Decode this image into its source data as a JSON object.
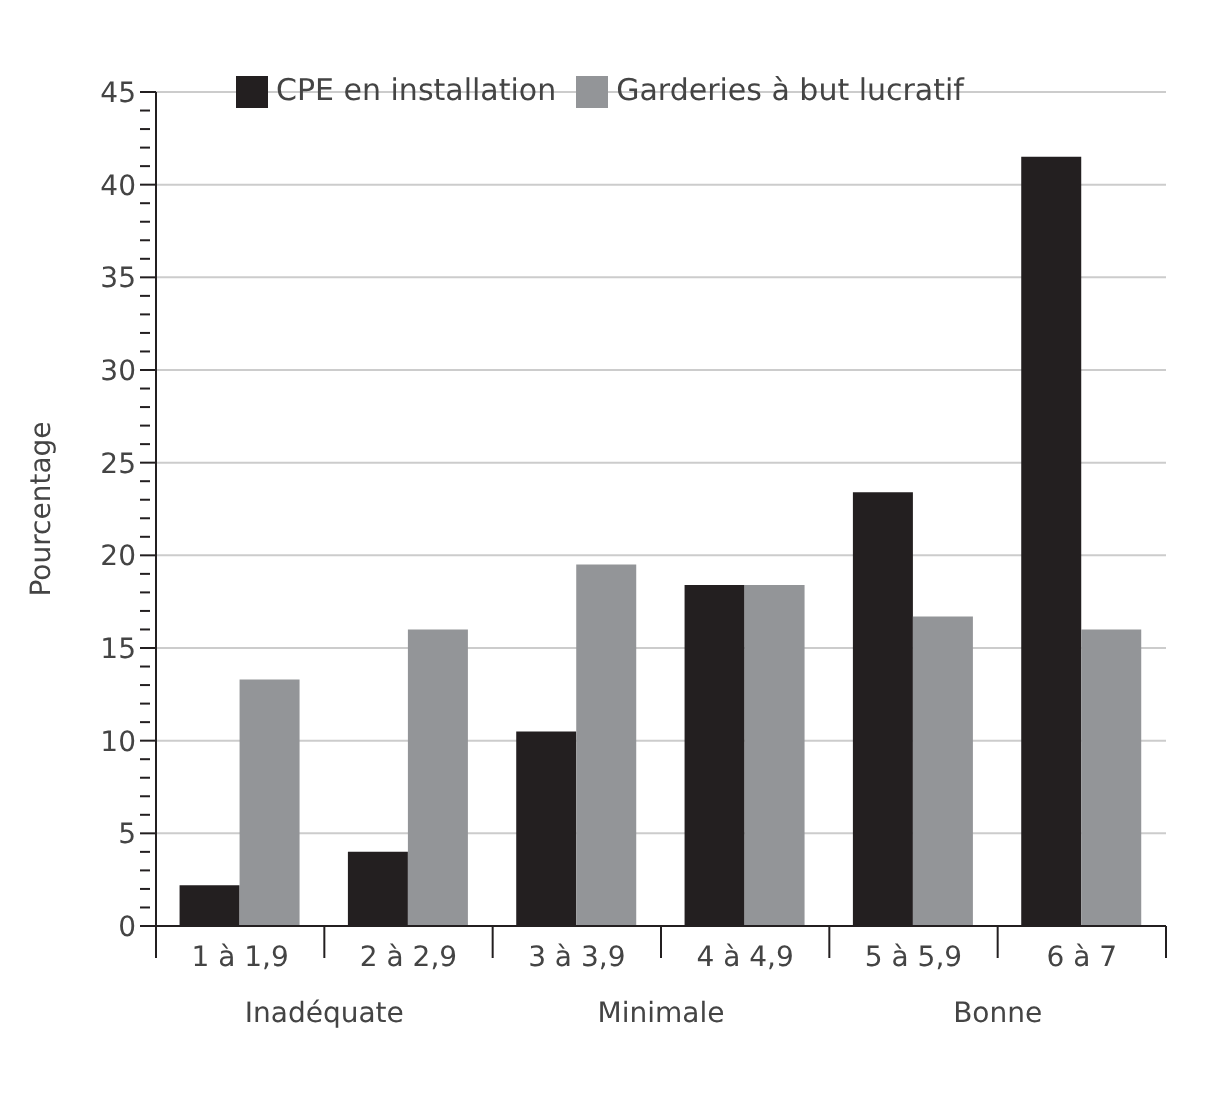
{
  "chart_data": {
    "type": "bar",
    "ylabel": "Pourcentage",
    "categories": [
      "1 à 1,9",
      "2 à 2,9",
      "3 à 3,9",
      "4 à 4,9",
      "5 à 5,9",
      "6 à 7"
    ],
    "series": [
      {
        "name": "CPE en installation",
        "color": "#231f20",
        "values": [
          2.2,
          4.0,
          10.5,
          18.4,
          23.4,
          41.5
        ]
      },
      {
        "name": "Garderies à but lucratif",
        "color": "#939598",
        "values": [
          13.3,
          16.0,
          19.5,
          18.4,
          16.7,
          16.0
        ]
      }
    ],
    "ylim": [
      0,
      45
    ],
    "yticks": [
      0,
      {
        "value": 1,
        "label": null
      },
      {
        "value": 2,
        "label": null
      },
      {
        "value": 3,
        "label": null
      },
      {
        "value": 4,
        "label": null
      },
      5,
      {
        "value": 6,
        "label": null
      },
      {
        "value": 7,
        "label": null
      },
      {
        "value": 8,
        "label": null
      },
      {
        "value": 9,
        "label": null
      },
      10,
      {
        "value": 11,
        "label": null
      },
      {
        "value": 12,
        "label": null
      },
      {
        "value": 13,
        "label": null
      },
      {
        "value": 14,
        "label": null
      },
      15,
      {
        "value": 16,
        "label": null
      },
      {
        "value": 17,
        "label": null
      },
      {
        "value": 18,
        "label": null
      },
      {
        "value": 19,
        "label": null
      },
      20,
      {
        "value": 21,
        "label": null
      },
      {
        "value": 22,
        "label": null
      },
      {
        "value": 23,
        "label": null
      },
      {
        "value": 24,
        "label": null
      },
      25,
      {
        "value": 26,
        "label": null
      },
      {
        "value": 27,
        "label": null
      },
      {
        "value": 28,
        "label": null
      },
      {
        "value": 29,
        "label": null
      },
      30,
      {
        "value": 31,
        "label": null
      },
      {
        "value": 32,
        "label": null
      },
      {
        "value": 33,
        "label": null
      },
      {
        "value": 34,
        "label": null
      },
      35,
      {
        "value": 36,
        "label": null
      },
      {
        "value": 37,
        "label": null
      },
      {
        "value": 38,
        "label": null
      },
      {
        "value": 39,
        "label": null
      },
      40,
      {
        "value": 41,
        "label": null
      },
      {
        "value": 42,
        "label": null
      },
      {
        "value": 43,
        "label": null
      },
      {
        "value": 44,
        "label": null
      },
      45
    ],
    "grid": "y",
    "legend": "top left",
    "annotations": [
      "Inadéquate",
      "Minimale",
      "Bonne"
    ]
  }
}
